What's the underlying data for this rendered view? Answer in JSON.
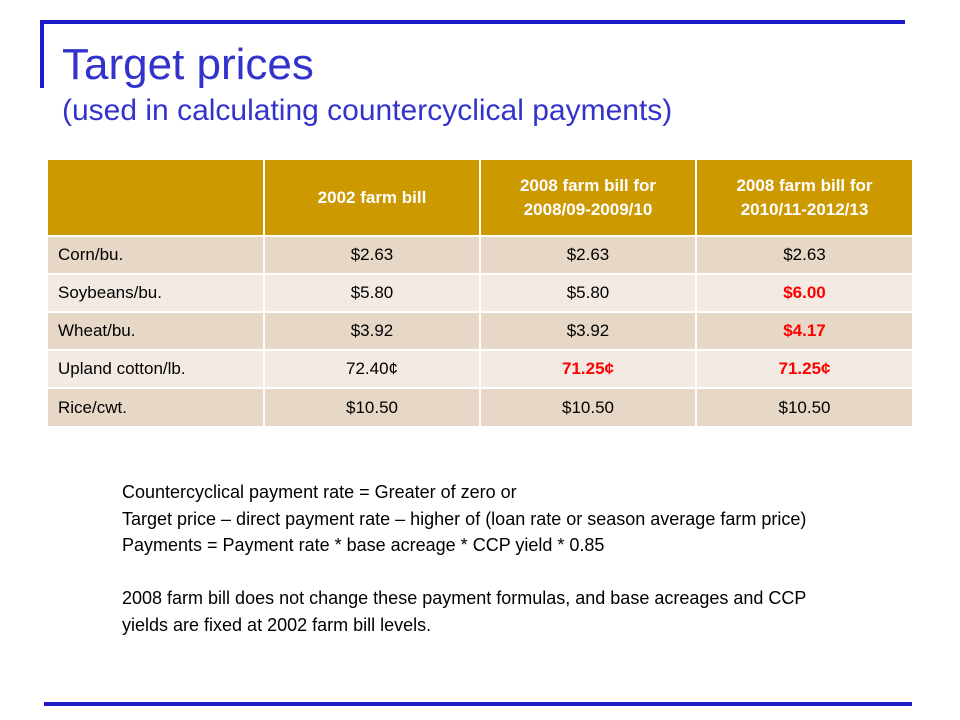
{
  "slide": {
    "title": "Target prices",
    "subtitle": "(used in calculating countercyclical payments)"
  },
  "table": {
    "headers": [
      "",
      "2002 farm bill",
      "2008 farm bill for 2008/09-2009/10",
      "2008 farm bill for 2010/11-2012/13"
    ],
    "rows": [
      {
        "label": "Corn/bu.",
        "cells": [
          "$2.63",
          "$2.63",
          "$2.63"
        ]
      },
      {
        "label": "Soybeans/bu.",
        "cells": [
          "$5.80",
          "$5.80",
          "$6.00"
        ]
      },
      {
        "label": "Wheat/bu.",
        "cells": [
          "$3.92",
          "$3.92",
          "$4.17"
        ]
      },
      {
        "label": "Upland cotton/lb.",
        "cells": [
          "72.40¢",
          "71.25¢",
          "71.25¢"
        ]
      },
      {
        "label": "Rice/cwt.",
        "cells": [
          "$10.50",
          "$10.50",
          "$10.50"
        ]
      }
    ],
    "highlight_color": "#ff0000",
    "header_color": "#cc9900"
  },
  "notes": {
    "line1": "Countercyclical payment rate = Greater of zero or",
    "line2": "Target price – direct payment rate – higher of (loan rate or season average farm price)",
    "line3": "Payments = Payment rate * base acreage * CCP yield * 0.85",
    "line4": "2008 farm bill does not change these payment formulas, and base acreages and CCP yields are fixed at 2002 farm bill levels."
  },
  "theme": {
    "accent": "#3333cc",
    "rule": "#1c1cc8"
  }
}
